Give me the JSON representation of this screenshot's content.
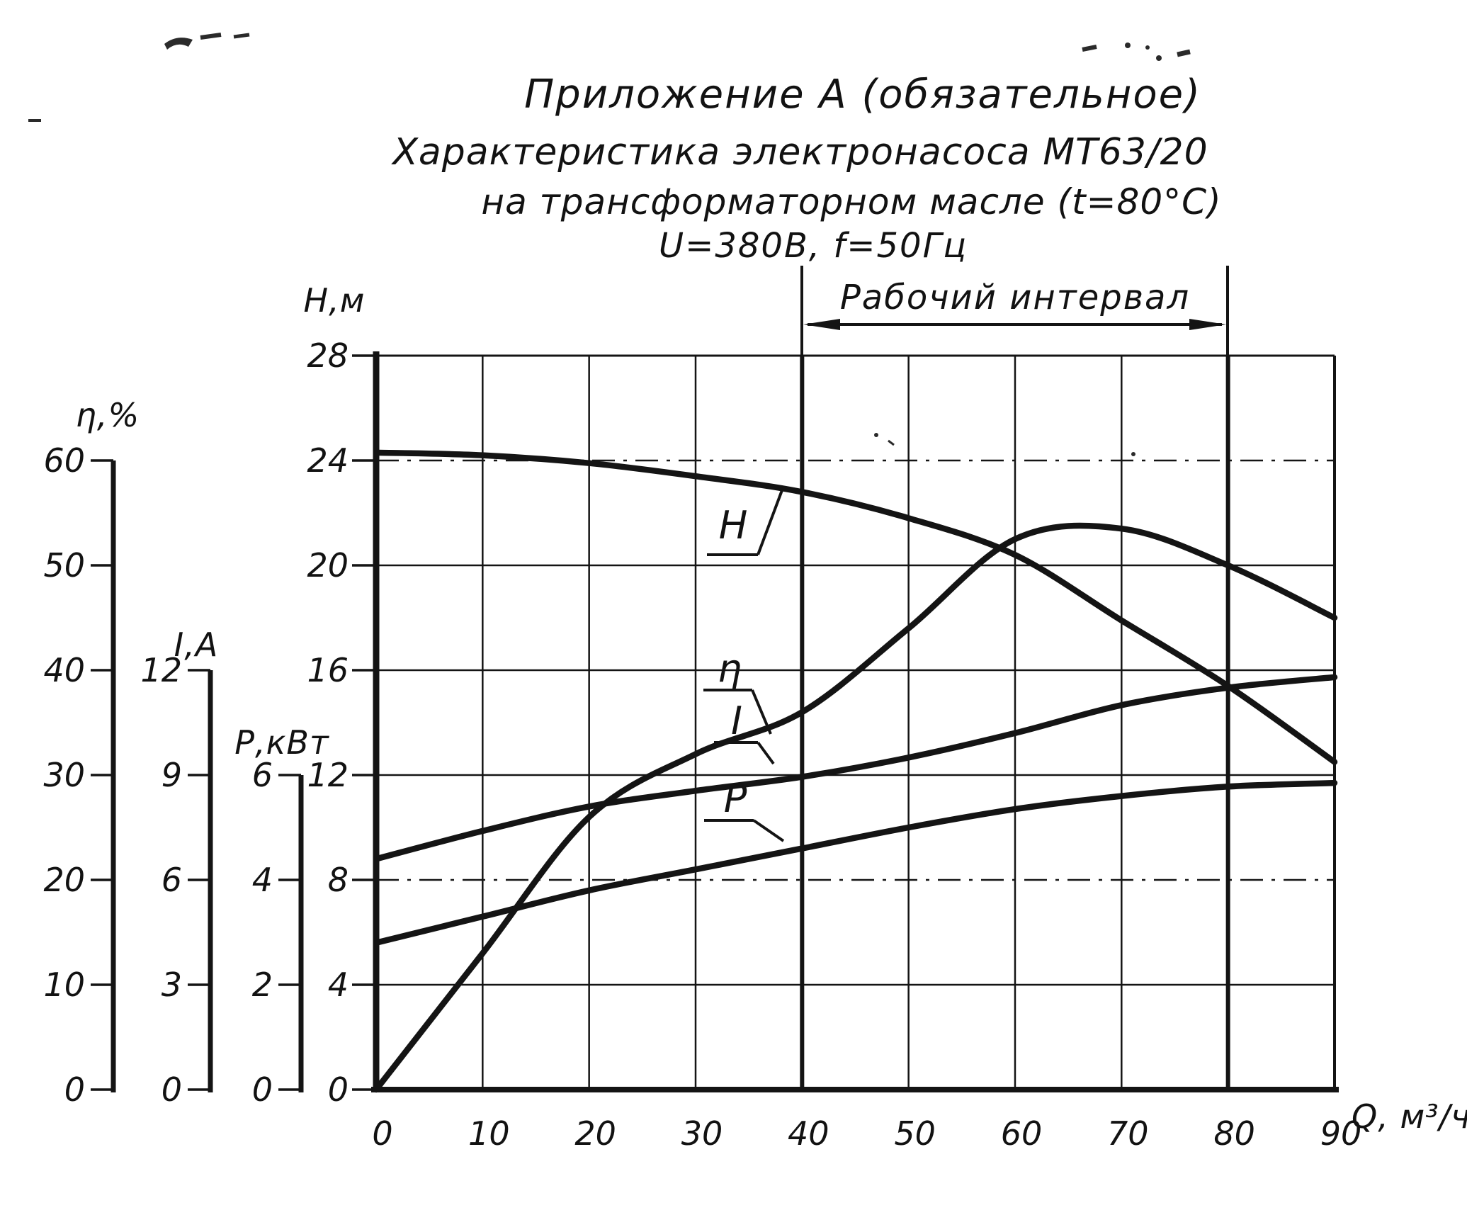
{
  "page": {
    "title_lines": [
      "Приложение А (обязательное)",
      "Характеристика электронасоса МТ63/20",
      "на трансформаторном масле (t=80°C)",
      "U=380В, f=50Гц"
    ]
  },
  "working_interval": {
    "label": "Рабочий интервал"
  },
  "axes": {
    "head": {
      "title": "Н,м",
      "tick_labels": [
        "28",
        "24",
        "20",
        "16",
        "12",
        "8",
        "4",
        "0"
      ]
    },
    "eta": {
      "title": "η,%",
      "tick_labels": [
        "60",
        "50",
        "40",
        "30",
        "20",
        "10",
        "0"
      ]
    },
    "current": {
      "title": "I,A",
      "tick_labels": [
        "12",
        "9",
        "6",
        "3",
        "0"
      ]
    },
    "power": {
      "title": "Р,кВт",
      "tick_labels": [
        "6",
        "4",
        "2",
        "0"
      ]
    },
    "flow": {
      "title": "Q, м³/ч",
      "tick_labels": [
        "0",
        "10",
        "20",
        "30",
        "40",
        "50",
        "60",
        "70",
        "80",
        "90"
      ]
    }
  },
  "curve_labels": {
    "head": "H",
    "eta": "η",
    "current": "I",
    "power": "P"
  },
  "ink_color": "#141414",
  "chart_data": {
    "type": "line",
    "title": "Характеристика электронасоса МТ63/20 на трансформаторном масле (t=80°C), U=380В, f=50Гц",
    "xlabel": "Q, м³/ч",
    "x": [
      0,
      10,
      20,
      30,
      40,
      50,
      60,
      70,
      80,
      90
    ],
    "xlim": [
      0,
      90
    ],
    "grid": true,
    "working_interval_x": [
      40,
      80
    ],
    "series": [
      {
        "name": "H",
        "unit": "м",
        "axis_range": [
          0,
          28
        ],
        "values": [
          24.3,
          24.2,
          23.9,
          23.4,
          22.8,
          21.8,
          20.4,
          17.9,
          15.4,
          12.5
        ]
      },
      {
        "name": "η",
        "unit": "%",
        "axis_range": [
          0,
          60
        ],
        "values": [
          0,
          13,
          26,
          32,
          36,
          44,
          52.5,
          53.5,
          50,
          45
        ]
      },
      {
        "name": "I",
        "unit": "А",
        "axis_range": [
          0,
          12
        ],
        "values": [
          6.6,
          7.4,
          8.1,
          8.55,
          8.95,
          9.5,
          10.2,
          11.0,
          11.5,
          11.8
        ]
      },
      {
        "name": "P",
        "unit": "кВт",
        "axis_range": [
          0,
          6
        ],
        "values": [
          2.8,
          3.3,
          3.8,
          4.2,
          4.6,
          5.0,
          5.35,
          5.6,
          5.78,
          5.85
        ]
      }
    ]
  }
}
